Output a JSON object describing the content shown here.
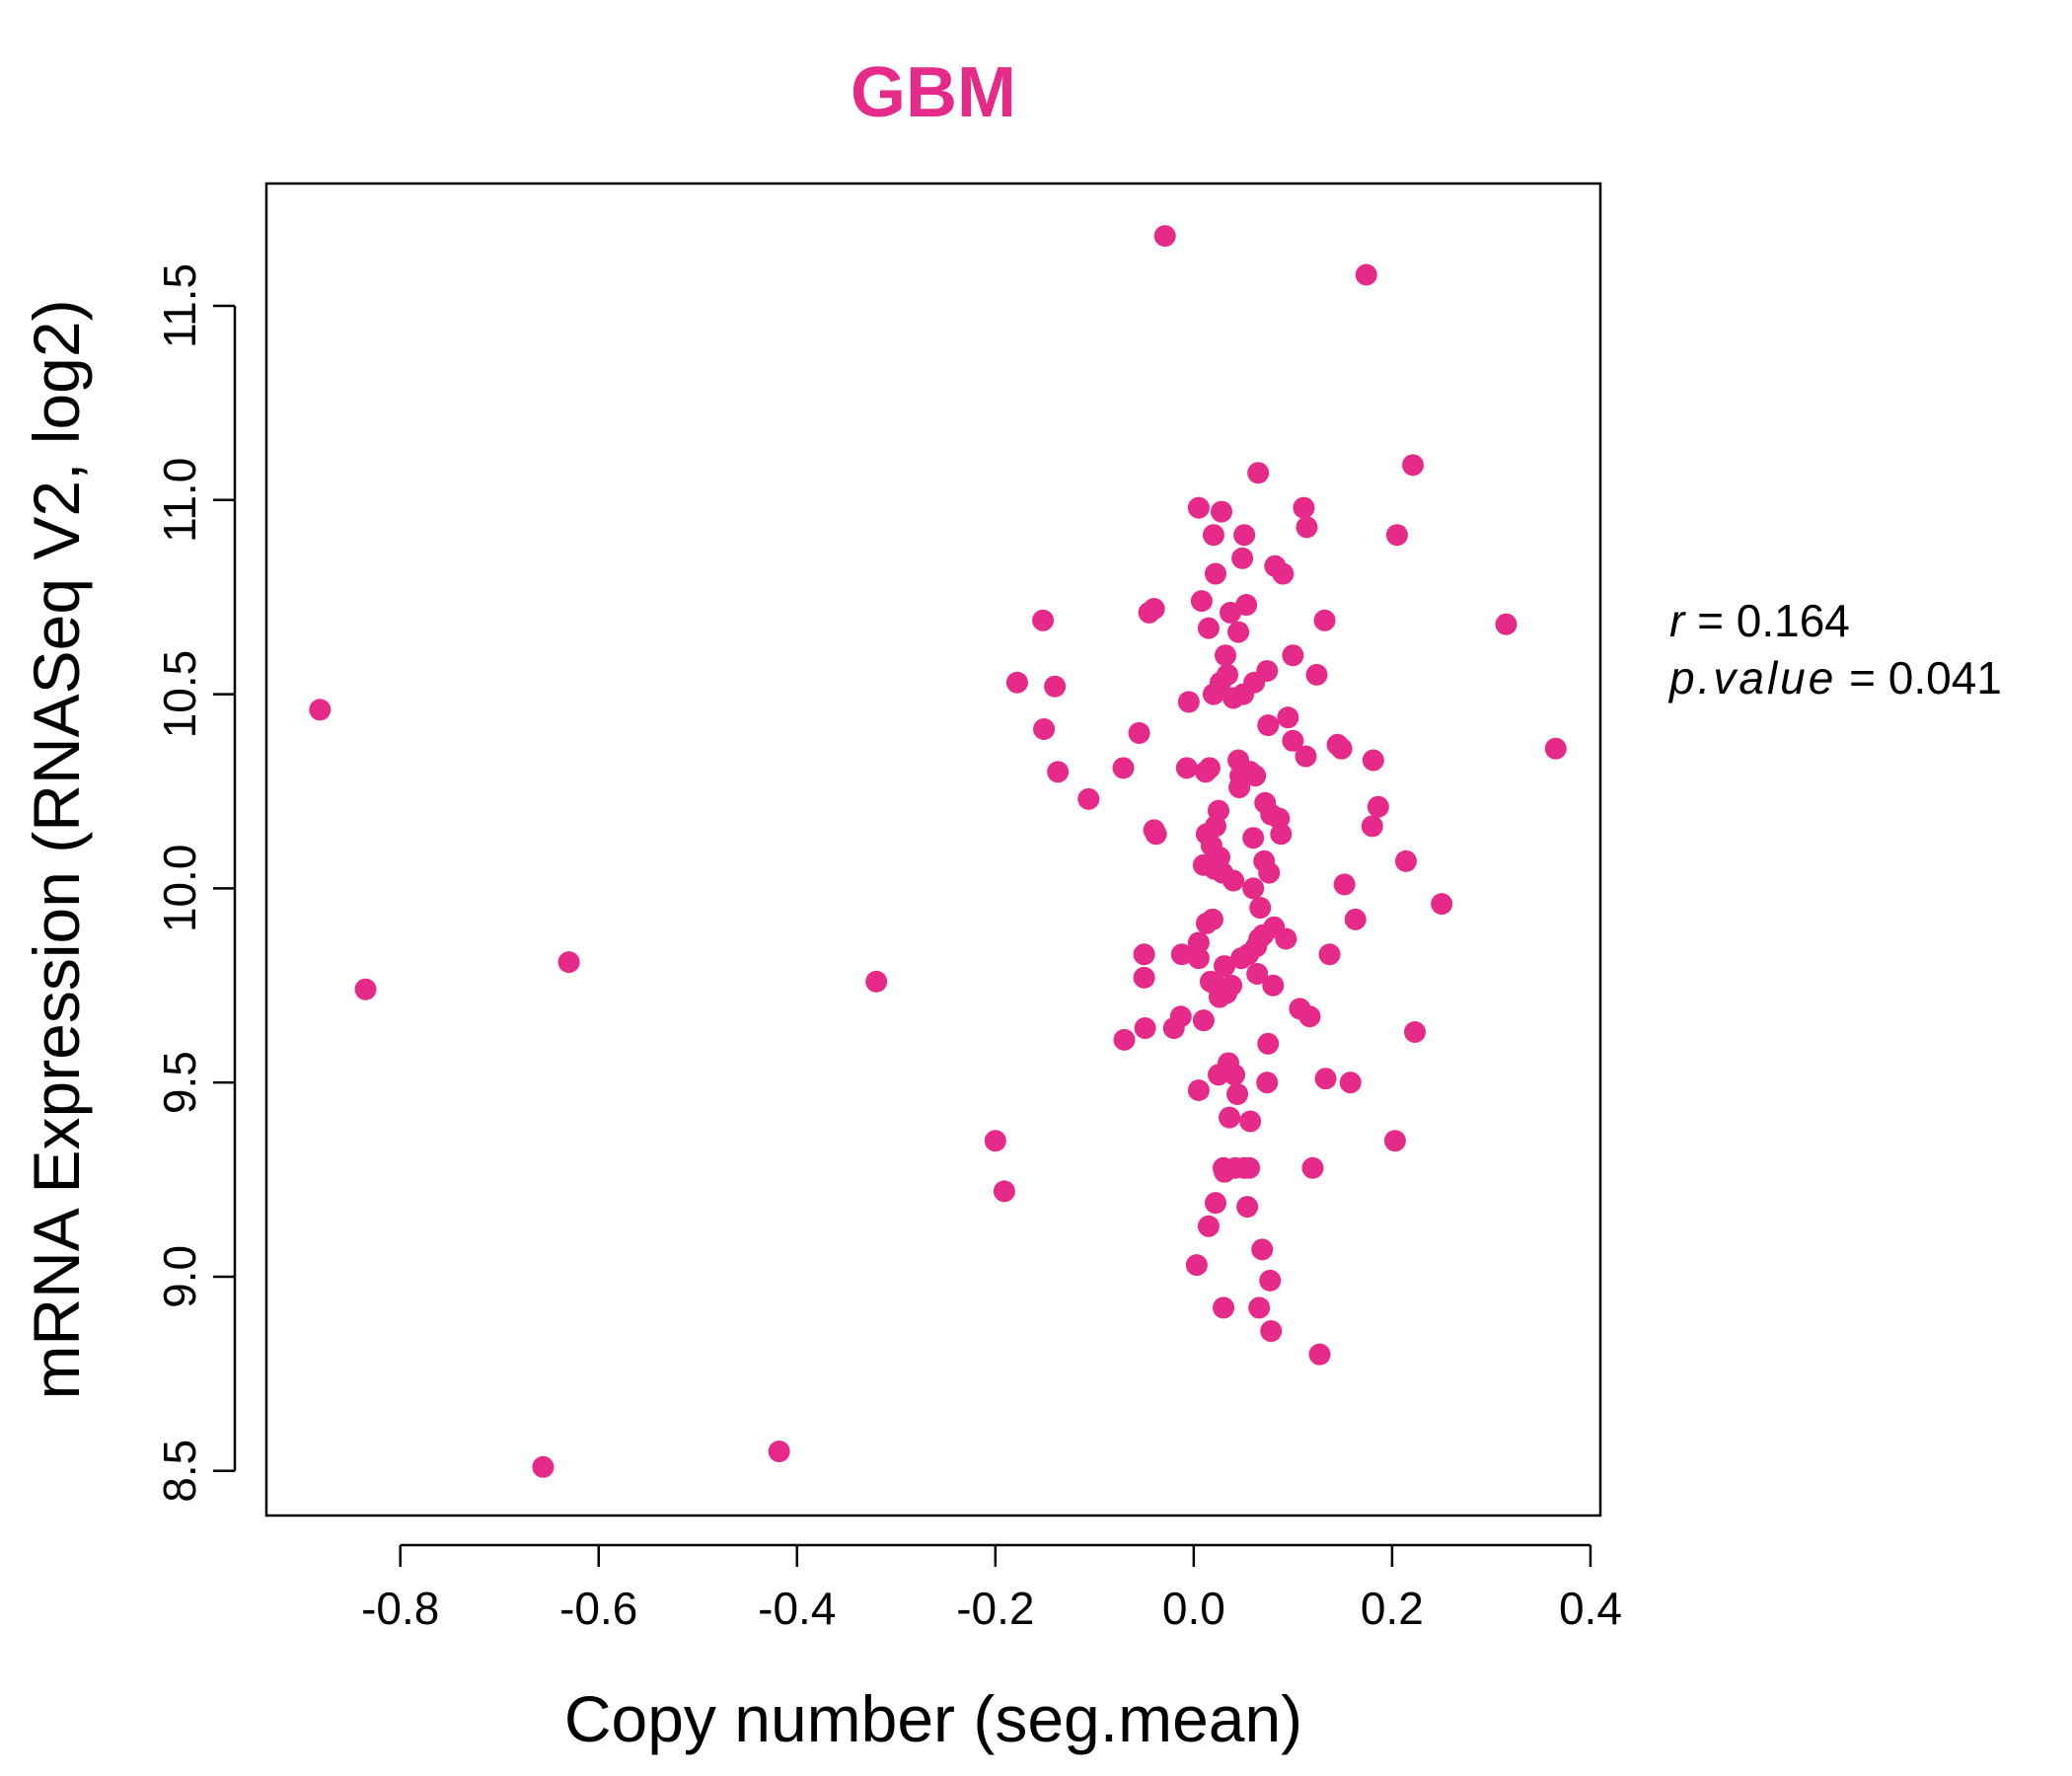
{
  "chart_data": {
    "type": "scatter",
    "title": "GBM",
    "xlabel": "Copy number (seg.mean)",
    "ylabel": "mRNA Expression (RNASeq V2, log2)",
    "xlim": [
      -0.935,
      0.41
    ],
    "ylim": [
      8.385,
      11.815
    ],
    "x_ticks": [
      -0.8,
      -0.6,
      -0.4,
      -0.2,
      0.0,
      0.2,
      0.4
    ],
    "x_tick_labels": [
      "-0.8",
      "-0.6",
      "-0.4",
      "-0.2",
      "0.0",
      "0.2",
      "0.4"
    ],
    "y_ticks": [
      8.5,
      9.0,
      9.5,
      10.0,
      10.5,
      11.0,
      11.5
    ],
    "y_tick_labels": [
      "8.5",
      "9.0",
      "9.5",
      "10.0",
      "10.5",
      "11.0",
      "11.5"
    ],
    "grid": false,
    "legend": "none",
    "colors": {
      "point": "#e62a8a",
      "title": "#e62a8a",
      "axis": "#000000"
    },
    "stats": {
      "r_label": "r",
      "r_value": "0.164",
      "p_label": "p.value",
      "p_value": "0.041"
    },
    "points": [
      [
        -0.881,
        10.46
      ],
      [
        -0.835,
        9.74
      ],
      [
        -0.656,
        8.51
      ],
      [
        -0.63,
        9.81
      ],
      [
        -0.418,
        8.55
      ],
      [
        -0.32,
        9.76
      ],
      [
        -0.2,
        9.35
      ],
      [
        -0.191,
        9.22
      ],
      [
        -0.178,
        10.53
      ],
      [
        -0.152,
        10.69
      ],
      [
        -0.151,
        10.41
      ],
      [
        -0.14,
        10.52
      ],
      [
        -0.137,
        10.3
      ],
      [
        -0.106,
        10.23
      ],
      [
        -0.071,
        10.31
      ],
      [
        -0.07,
        9.61
      ],
      [
        -0.055,
        10.4
      ],
      [
        -0.05,
        9.83
      ],
      [
        -0.05,
        9.77
      ],
      [
        -0.049,
        9.64
      ],
      [
        -0.045,
        10.71
      ],
      [
        -0.04,
        10.72
      ],
      [
        -0.04,
        10.15
      ],
      [
        -0.038,
        10.14
      ],
      [
        -0.029,
        11.68
      ],
      [
        -0.02,
        9.64
      ],
      [
        -0.013,
        9.67
      ],
      [
        -0.012,
        9.83
      ],
      [
        -0.007,
        10.31
      ],
      [
        -0.005,
        10.48
      ],
      [
        0.003,
        9.03
      ],
      [
        0.005,
        9.86
      ],
      [
        0.005,
        9.82
      ],
      [
        0.005,
        9.48
      ],
      [
        0.005,
        10.98
      ],
      [
        0.008,
        10.74
      ],
      [
        0.01,
        10.06
      ],
      [
        0.01,
        9.66
      ],
      [
        0.012,
        10.3
      ],
      [
        0.013,
        10.14
      ],
      [
        0.013,
        9.91
      ],
      [
        0.015,
        9.13
      ],
      [
        0.015,
        10.67
      ],
      [
        0.016,
        10.31
      ],
      [
        0.017,
        9.76
      ],
      [
        0.018,
        10.11
      ],
      [
        0.019,
        9.92
      ],
      [
        0.02,
        10.5
      ],
      [
        0.02,
        10.91
      ],
      [
        0.021,
        10.05
      ],
      [
        0.022,
        10.81
      ],
      [
        0.022,
        10.16
      ],
      [
        0.022,
        9.19
      ],
      [
        0.023,
        9.75
      ],
      [
        0.025,
        9.52
      ],
      [
        0.025,
        10.2
      ],
      [
        0.026,
        10.08
      ],
      [
        0.026,
        9.72
      ],
      [
        0.027,
        10.53
      ],
      [
        0.028,
        10.97
      ],
      [
        0.029,
        10.04
      ],
      [
        0.03,
        9.28
      ],
      [
        0.03,
        8.92
      ],
      [
        0.031,
        9.8
      ],
      [
        0.031,
        9.27
      ],
      [
        0.032,
        10.6
      ],
      [
        0.033,
        9.73
      ],
      [
        0.034,
        10.55
      ],
      [
        0.035,
        9.55
      ],
      [
        0.036,
        9.41
      ],
      [
        0.037,
        10.71
      ],
      [
        0.038,
        9.75
      ],
      [
        0.04,
        10.02
      ],
      [
        0.04,
        10.49
      ],
      [
        0.041,
        9.52
      ],
      [
        0.042,
        9.28
      ],
      [
        0.044,
        9.47
      ],
      [
        0.045,
        10.33
      ],
      [
        0.045,
        10.66
      ],
      [
        0.046,
        10.26
      ],
      [
        0.047,
        10.29
      ],
      [
        0.048,
        9.82
      ],
      [
        0.049,
        10.85
      ],
      [
        0.05,
        10.5
      ],
      [
        0.051,
        9.28
      ],
      [
        0.051,
        10.91
      ],
      [
        0.053,
        10.73
      ],
      [
        0.054,
        9.18
      ],
      [
        0.055,
        9.83
      ],
      [
        0.056,
        9.28
      ],
      [
        0.057,
        10.3
      ],
      [
        0.057,
        9.4
      ],
      [
        0.06,
        10.0
      ],
      [
        0.06,
        10.13
      ],
      [
        0.061,
        10.53
      ],
      [
        0.062,
        10.29
      ],
      [
        0.063,
        9.85
      ],
      [
        0.064,
        9.78
      ],
      [
        0.065,
        11.07
      ],
      [
        0.066,
        9.87
      ],
      [
        0.066,
        8.92
      ],
      [
        0.067,
        9.95
      ],
      [
        0.069,
        9.07
      ],
      [
        0.07,
        9.88
      ],
      [
        0.071,
        10.07
      ],
      [
        0.072,
        10.22
      ],
      [
        0.074,
        9.5
      ],
      [
        0.074,
        10.56
      ],
      [
        0.075,
        10.42
      ],
      [
        0.075,
        9.6
      ],
      [
        0.076,
        10.04
      ],
      [
        0.077,
        8.99
      ],
      [
        0.078,
        10.19
      ],
      [
        0.078,
        8.86
      ],
      [
        0.08,
        9.75
      ],
      [
        0.081,
        9.9
      ],
      [
        0.082,
        10.83
      ],
      [
        0.086,
        10.18
      ],
      [
        0.088,
        10.14
      ],
      [
        0.09,
        10.81
      ],
      [
        0.093,
        9.87
      ],
      [
        0.095,
        10.44
      ],
      [
        0.1,
        10.38
      ],
      [
        0.1,
        10.6
      ],
      [
        0.107,
        9.69
      ],
      [
        0.111,
        10.98
      ],
      [
        0.113,
        10.34
      ],
      [
        0.114,
        10.93
      ],
      [
        0.117,
        9.67
      ],
      [
        0.12,
        9.28
      ],
      [
        0.124,
        10.55
      ],
      [
        0.127,
        8.8
      ],
      [
        0.132,
        10.69
      ],
      [
        0.133,
        9.51
      ],
      [
        0.137,
        9.83
      ],
      [
        0.145,
        10.37
      ],
      [
        0.149,
        10.36
      ],
      [
        0.152,
        10.01
      ],
      [
        0.158,
        9.5
      ],
      [
        0.163,
        9.92
      ],
      [
        0.18,
        10.16
      ],
      [
        0.181,
        10.33
      ],
      [
        0.186,
        10.21
      ],
      [
        0.203,
        9.35
      ],
      [
        0.205,
        10.91
      ],
      [
        0.214,
        10.07
      ],
      [
        0.221,
        11.09
      ],
      [
        0.223,
        9.63
      ],
      [
        0.25,
        9.96
      ],
      [
        0.315,
        10.68
      ],
      [
        0.365,
        10.36
      ],
      [
        0.174,
        11.58
      ]
    ]
  }
}
